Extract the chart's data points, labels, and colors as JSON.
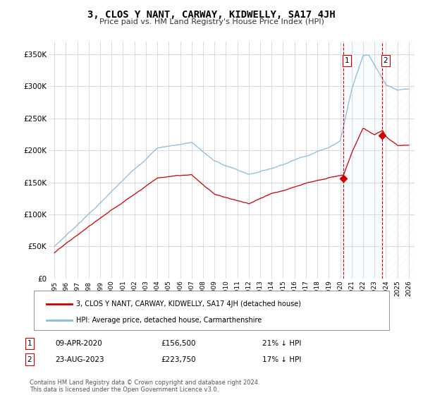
{
  "title": "3, CLOS Y NANT, CARWAY, KIDWELLY, SA17 4JH",
  "subtitle": "Price paid vs. HM Land Registry's House Price Index (HPI)",
  "ylabel_ticks": [
    "£0",
    "£50K",
    "£100K",
    "£150K",
    "£200K",
    "£250K",
    "£300K",
    "£350K"
  ],
  "ytick_values": [
    0,
    50000,
    100000,
    150000,
    200000,
    250000,
    300000,
    350000
  ],
  "ylim": [
    0,
    370000
  ],
  "xlim_start": 1994.5,
  "xlim_end": 2026.5,
  "xtick_years": [
    1995,
    1996,
    1997,
    1998,
    1999,
    2000,
    2001,
    2002,
    2003,
    2004,
    2005,
    2006,
    2007,
    2008,
    2009,
    2010,
    2011,
    2012,
    2013,
    2014,
    2015,
    2016,
    2017,
    2018,
    2019,
    2020,
    2021,
    2022,
    2023,
    2024,
    2025,
    2026
  ],
  "hpi_color": "#88bbdd",
  "price_color": "#cc0000",
  "sale1_x": 2020.27,
  "sale1_y": 156500,
  "sale2_x": 2023.65,
  "sale2_y": 223750,
  "vline_color": "#cc0000",
  "shade_color": "#ddeeff",
  "legend_label_price": "3, CLOS Y NANT, CARWAY, KIDWELLY, SA17 4JH (detached house)",
  "legend_label_hpi": "HPI: Average price, detached house, Carmarthenshire",
  "annotation1_date": "09-APR-2020",
  "annotation1_price": "£156,500",
  "annotation1_hpi": "21% ↓ HPI",
  "annotation2_date": "23-AUG-2023",
  "annotation2_price": "£223,750",
  "annotation2_hpi": "17% ↓ HPI",
  "footer": "Contains HM Land Registry data © Crown copyright and database right 2024.\nThis data is licensed under the Open Government Licence v3.0.",
  "background_color": "#ffffff",
  "grid_color": "#cccccc",
  "figsize": [
    6.0,
    5.6
  ],
  "dpi": 100
}
